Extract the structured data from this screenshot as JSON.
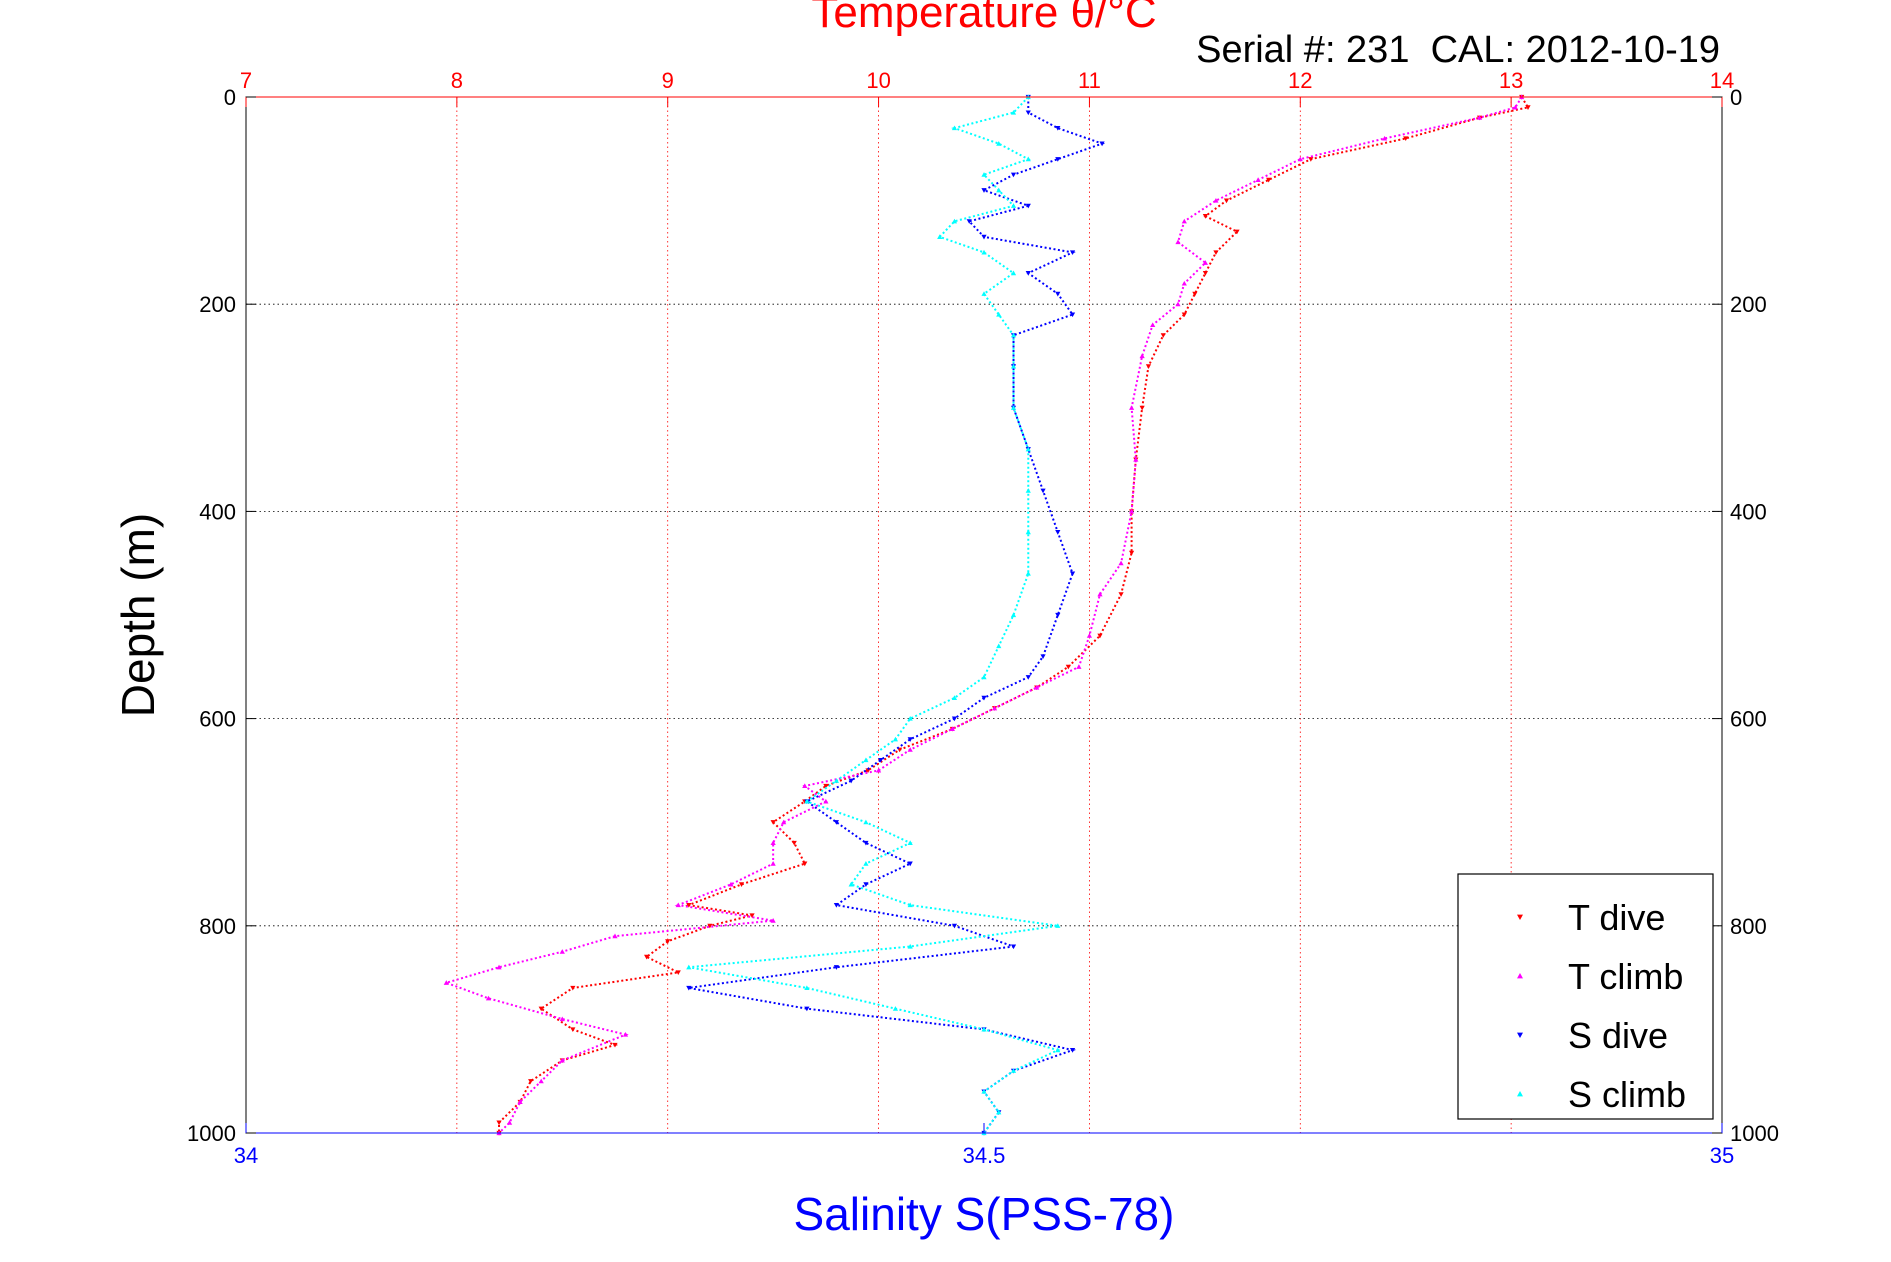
{
  "chart_data": {
    "type": "scatter",
    "top_axis": {
      "label": "Temperature θ/°C",
      "range": [
        7,
        14
      ],
      "ticks": [
        "7",
        "8",
        "9",
        "10",
        "11",
        "12",
        "13",
        "14"
      ],
      "color": "#ff0000"
    },
    "bottom_axis": {
      "label": "Salinity S(PSS-78)",
      "range": [
        34,
        35
      ],
      "ticks": [
        "34",
        "34.5",
        "35"
      ],
      "color": "#0000ff"
    },
    "y_axis": {
      "label": "Depth (m)",
      "range": [
        0,
        1000
      ],
      "reversed": true,
      "ticks": [
        "0",
        "200",
        "400",
        "600",
        "800",
        "1000"
      ]
    },
    "annotation": "Serial #: 231  CAL: 2012-10-19",
    "grid": true,
    "legend_position": "bottom-right",
    "series": [
      {
        "name": "T dive",
        "axis": "temperature",
        "marker": "triangle-down",
        "color": "#ff0000",
        "points": [
          [
            0,
            13.05
          ],
          [
            10,
            13.08
          ],
          [
            20,
            12.85
          ],
          [
            40,
            12.5
          ],
          [
            60,
            12.05
          ],
          [
            80,
            11.85
          ],
          [
            100,
            11.65
          ],
          [
            115,
            11.55
          ],
          [
            130,
            11.7
          ],
          [
            150,
            11.6
          ],
          [
            170,
            11.55
          ],
          [
            190,
            11.5
          ],
          [
            210,
            11.45
          ],
          [
            230,
            11.35
          ],
          [
            260,
            11.28
          ],
          [
            300,
            11.25
          ],
          [
            350,
            11.22
          ],
          [
            400,
            11.2
          ],
          [
            440,
            11.2
          ],
          [
            480,
            11.15
          ],
          [
            520,
            11.05
          ],
          [
            550,
            10.9
          ],
          [
            570,
            10.75
          ],
          [
            590,
            10.55
          ],
          [
            610,
            10.35
          ],
          [
            630,
            10.1
          ],
          [
            650,
            9.95
          ],
          [
            665,
            9.75
          ],
          [
            680,
            9.65
          ],
          [
            700,
            9.5
          ],
          [
            720,
            9.6
          ],
          [
            740,
            9.65
          ],
          [
            760,
            9.35
          ],
          [
            780,
            9.1
          ],
          [
            790,
            9.4
          ],
          [
            800,
            9.2
          ],
          [
            815,
            9.0
          ],
          [
            830,
            8.9
          ],
          [
            845,
            9.05
          ],
          [
            860,
            8.55
          ],
          [
            880,
            8.4
          ],
          [
            900,
            8.55
          ],
          [
            915,
            8.75
          ],
          [
            930,
            8.5
          ],
          [
            950,
            8.35
          ],
          [
            970,
            8.3
          ],
          [
            990,
            8.2
          ],
          [
            1000,
            8.2
          ]
        ]
      },
      {
        "name": "T climb",
        "axis": "temperature",
        "marker": "triangle-up",
        "color": "#ff00ff",
        "points": [
          [
            0,
            13.05
          ],
          [
            10,
            13.02
          ],
          [
            20,
            12.85
          ],
          [
            40,
            12.4
          ],
          [
            60,
            12.0
          ],
          [
            80,
            11.8
          ],
          [
            100,
            11.6
          ],
          [
            120,
            11.45
          ],
          [
            140,
            11.42
          ],
          [
            160,
            11.55
          ],
          [
            180,
            11.45
          ],
          [
            200,
            11.42
          ],
          [
            220,
            11.3
          ],
          [
            250,
            11.25
          ],
          [
            300,
            11.2
          ],
          [
            350,
            11.22
          ],
          [
            400,
            11.2
          ],
          [
            450,
            11.15
          ],
          [
            480,
            11.05
          ],
          [
            520,
            11.0
          ],
          [
            550,
            10.95
          ],
          [
            570,
            10.75
          ],
          [
            590,
            10.55
          ],
          [
            610,
            10.35
          ],
          [
            630,
            10.15
          ],
          [
            650,
            10.0
          ],
          [
            665,
            9.65
          ],
          [
            680,
            9.75
          ],
          [
            700,
            9.55
          ],
          [
            720,
            9.5
          ],
          [
            740,
            9.5
          ],
          [
            760,
            9.3
          ],
          [
            780,
            9.05
          ],
          [
            795,
            9.5
          ],
          [
            810,
            8.75
          ],
          [
            825,
            8.5
          ],
          [
            840,
            8.2
          ],
          [
            855,
            7.95
          ],
          [
            870,
            8.15
          ],
          [
            890,
            8.5
          ],
          [
            905,
            8.8
          ],
          [
            930,
            8.5
          ],
          [
            950,
            8.4
          ],
          [
            970,
            8.3
          ],
          [
            990,
            8.25
          ],
          [
            1000,
            8.2
          ]
        ]
      },
      {
        "name": "S dive",
        "axis": "salinity",
        "marker": "triangle-down",
        "color": "#0000ff",
        "points": [
          [
            0,
            34.53
          ],
          [
            15,
            34.53
          ],
          [
            30,
            34.55
          ],
          [
            45,
            34.58
          ],
          [
            60,
            34.55
          ],
          [
            75,
            34.52
          ],
          [
            90,
            34.5
          ],
          [
            105,
            34.53
          ],
          [
            120,
            34.49
          ],
          [
            135,
            34.5
          ],
          [
            150,
            34.56
          ],
          [
            170,
            34.53
          ],
          [
            190,
            34.55
          ],
          [
            210,
            34.56
          ],
          [
            230,
            34.52
          ],
          [
            260,
            34.52
          ],
          [
            300,
            34.52
          ],
          [
            340,
            34.53
          ],
          [
            380,
            34.54
          ],
          [
            420,
            34.55
          ],
          [
            460,
            34.56
          ],
          [
            500,
            34.55
          ],
          [
            540,
            34.54
          ],
          [
            560,
            34.53
          ],
          [
            580,
            34.5
          ],
          [
            600,
            34.48
          ],
          [
            620,
            34.45
          ],
          [
            640,
            34.43
          ],
          [
            660,
            34.41
          ],
          [
            680,
            34.38
          ],
          [
            700,
            34.4
          ],
          [
            720,
            34.42
          ],
          [
            740,
            34.45
          ],
          [
            760,
            34.42
          ],
          [
            780,
            34.4
          ],
          [
            800,
            34.48
          ],
          [
            820,
            34.52
          ],
          [
            840,
            34.4
          ],
          [
            860,
            34.3
          ],
          [
            880,
            34.38
          ],
          [
            900,
            34.5
          ],
          [
            920,
            34.56
          ],
          [
            940,
            34.52
          ],
          [
            960,
            34.5
          ],
          [
            980,
            34.51
          ],
          [
            1000,
            34.5
          ]
        ]
      },
      {
        "name": "S climb",
        "axis": "salinity",
        "marker": "triangle-up",
        "color": "#00ffff",
        "points": [
          [
            0,
            34.53
          ],
          [
            15,
            34.52
          ],
          [
            30,
            34.48
          ],
          [
            45,
            34.51
          ],
          [
            60,
            34.53
          ],
          [
            75,
            34.5
          ],
          [
            90,
            34.51
          ],
          [
            105,
            34.52
          ],
          [
            120,
            34.48
          ],
          [
            135,
            34.47
          ],
          [
            150,
            34.5
          ],
          [
            170,
            34.52
          ],
          [
            190,
            34.5
          ],
          [
            210,
            34.51
          ],
          [
            230,
            34.52
          ],
          [
            260,
            34.52
          ],
          [
            300,
            34.52
          ],
          [
            340,
            34.53
          ],
          [
            380,
            34.53
          ],
          [
            420,
            34.53
          ],
          [
            460,
            34.53
          ],
          [
            500,
            34.52
          ],
          [
            530,
            34.51
          ],
          [
            560,
            34.5
          ],
          [
            580,
            34.48
          ],
          [
            600,
            34.45
          ],
          [
            620,
            34.44
          ],
          [
            640,
            34.42
          ],
          [
            660,
            34.4
          ],
          [
            680,
            34.38
          ],
          [
            700,
            34.42
          ],
          [
            720,
            34.45
          ],
          [
            740,
            34.42
          ],
          [
            760,
            34.41
          ],
          [
            780,
            34.45
          ],
          [
            800,
            34.55
          ],
          [
            820,
            34.45
          ],
          [
            840,
            34.3
          ],
          [
            860,
            34.38
          ],
          [
            880,
            34.44
          ],
          [
            900,
            34.5
          ],
          [
            920,
            34.55
          ],
          [
            940,
            34.52
          ],
          [
            960,
            34.5
          ],
          [
            980,
            34.51
          ],
          [
            1000,
            34.5
          ]
        ]
      }
    ]
  }
}
